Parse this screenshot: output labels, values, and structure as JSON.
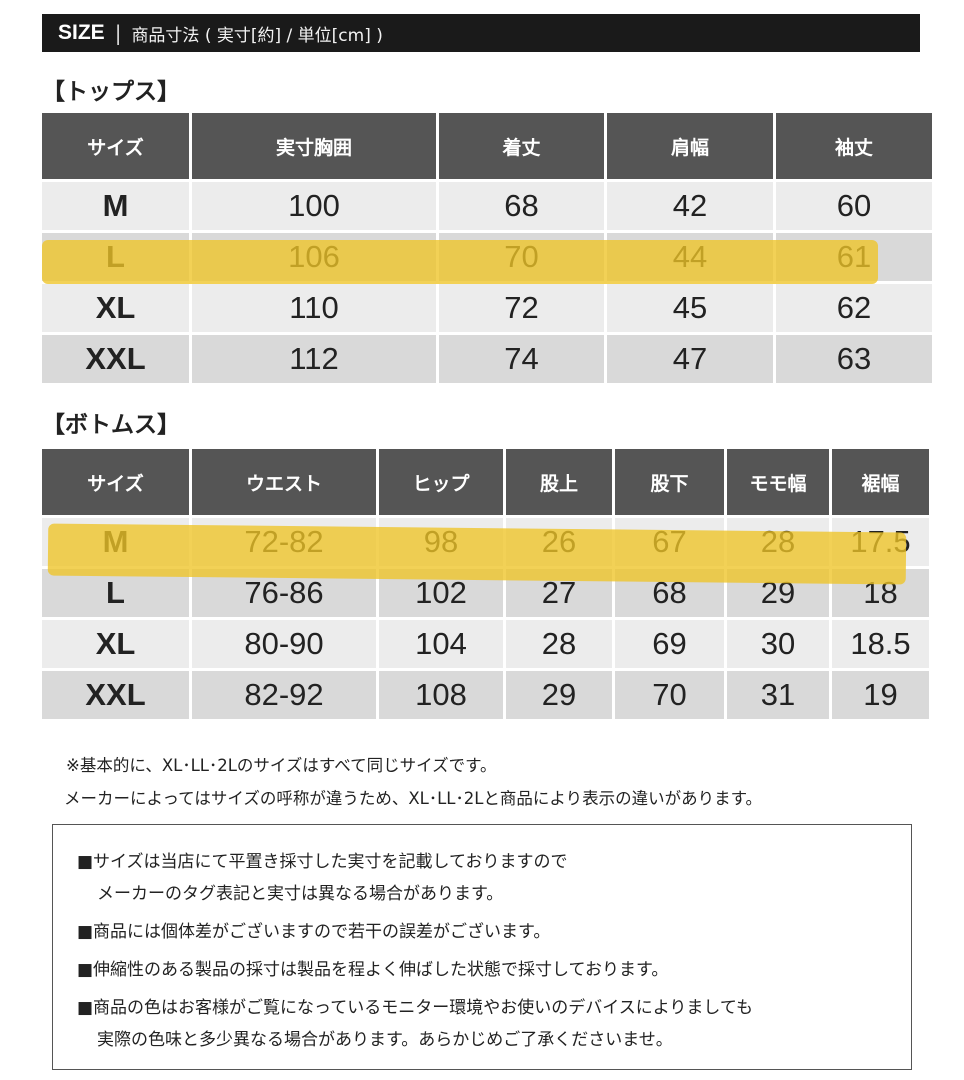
{
  "header": {
    "size_word": "SIZE",
    "separator": "|",
    "subtitle": "商品寸法 ( 実寸[約] / 単位[cm] )"
  },
  "tops": {
    "title": "【トップス】",
    "columns": [
      "サイズ",
      "実寸胸囲",
      "着丈",
      "肩幅",
      "袖丈"
    ],
    "rows": [
      [
        "M",
        "100",
        "68",
        "42",
        "60"
      ],
      [
        "L",
        "106",
        "70",
        "44",
        "61"
      ],
      [
        "XL",
        "110",
        "72",
        "45",
        "62"
      ],
      [
        "XXL",
        "112",
        "74",
        "47",
        "63"
      ]
    ],
    "highlighted_row": "L"
  },
  "bottoms": {
    "title": "【ボトムス】",
    "columns": [
      "サイズ",
      "ウエスト",
      "ヒップ",
      "股上",
      "股下",
      "モモ幅",
      "裾幅"
    ],
    "rows": [
      [
        "M",
        "72-82",
        "98",
        "26",
        "67",
        "28",
        "17.5"
      ],
      [
        "L",
        "76-86",
        "102",
        "27",
        "68",
        "29",
        "18"
      ],
      [
        "XL",
        "80-90",
        "104",
        "28",
        "69",
        "30",
        "18.5"
      ],
      [
        "XXL",
        "82-92",
        "108",
        "29",
        "70",
        "31",
        "19"
      ]
    ],
    "highlighted_row": "M"
  },
  "notes": [
    "※基本的に、XL･LL･2Lのサイズはすべて同じサイズです。",
    "メーカーによってはサイズの呼称が違うため、XL･LL･2Lと商品により表示の違いがあります。"
  ],
  "notice": [
    "■サイズは当店にて平置き採寸した実寸を記載しておりますので",
    "メーカーのタグ表記と実寸は異なる場合があります。",
    "■商品には個体差がございますので若干の誤差がございます。",
    "■伸縮性のある製品の採寸は製品を程よく伸ばした状態で採寸しております。",
    "■商品の色はお客様がご覧になっているモニター環境やお使いのデバイスによりましても",
    "実際の色味と多少異なる場合があります。あらかじめご了承くださいませ。"
  ],
  "colors": {
    "header_bg": "#1a1a1a",
    "table_header_bg": "#555555",
    "row_light": "#ececec",
    "row_dark": "#d9d9d9",
    "highlight": "#eec426"
  }
}
